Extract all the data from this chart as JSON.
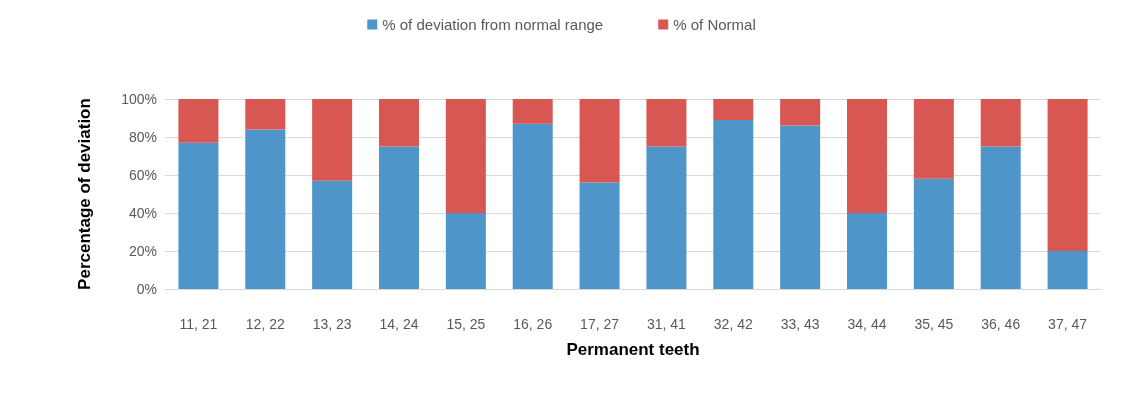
{
  "chart_data": {
    "type": "bar",
    "stacked": true,
    "xlabel": "Permanent teeth",
    "ylabel": "Percentage of deviation",
    "categories": [
      "11, 21",
      "12, 22",
      "13, 23",
      "14, 24",
      "15, 25",
      "16, 26",
      "17, 27",
      "31, 41",
      "32, 42",
      "33, 43",
      "34, 44",
      "35, 45",
      "36, 46",
      "37, 47"
    ],
    "series": [
      {
        "name": "% of deviation from normal range",
        "color": "#4e95c9",
        "values": [
          77,
          84,
          57,
          75,
          40,
          87,
          56,
          75,
          89,
          86,
          40,
          58,
          75,
          20
        ]
      },
      {
        "name": "% of Normal",
        "color": "#d95753",
        "values": [
          23,
          16,
          43,
          25,
          60,
          13,
          44,
          25,
          11,
          14,
          60,
          42,
          25,
          80
        ]
      }
    ],
    "ylim": [
      0,
      100
    ],
    "yticks": [
      {
        "value": 0,
        "label": "0%"
      },
      {
        "value": 20,
        "label": "20%"
      },
      {
        "value": 40,
        "label": "40%"
      },
      {
        "value": 60,
        "label": "60%"
      },
      {
        "value": 80,
        "label": "80%"
      },
      {
        "value": 100,
        "label": "100%"
      }
    ],
    "grid": "y",
    "legend": "top"
  }
}
